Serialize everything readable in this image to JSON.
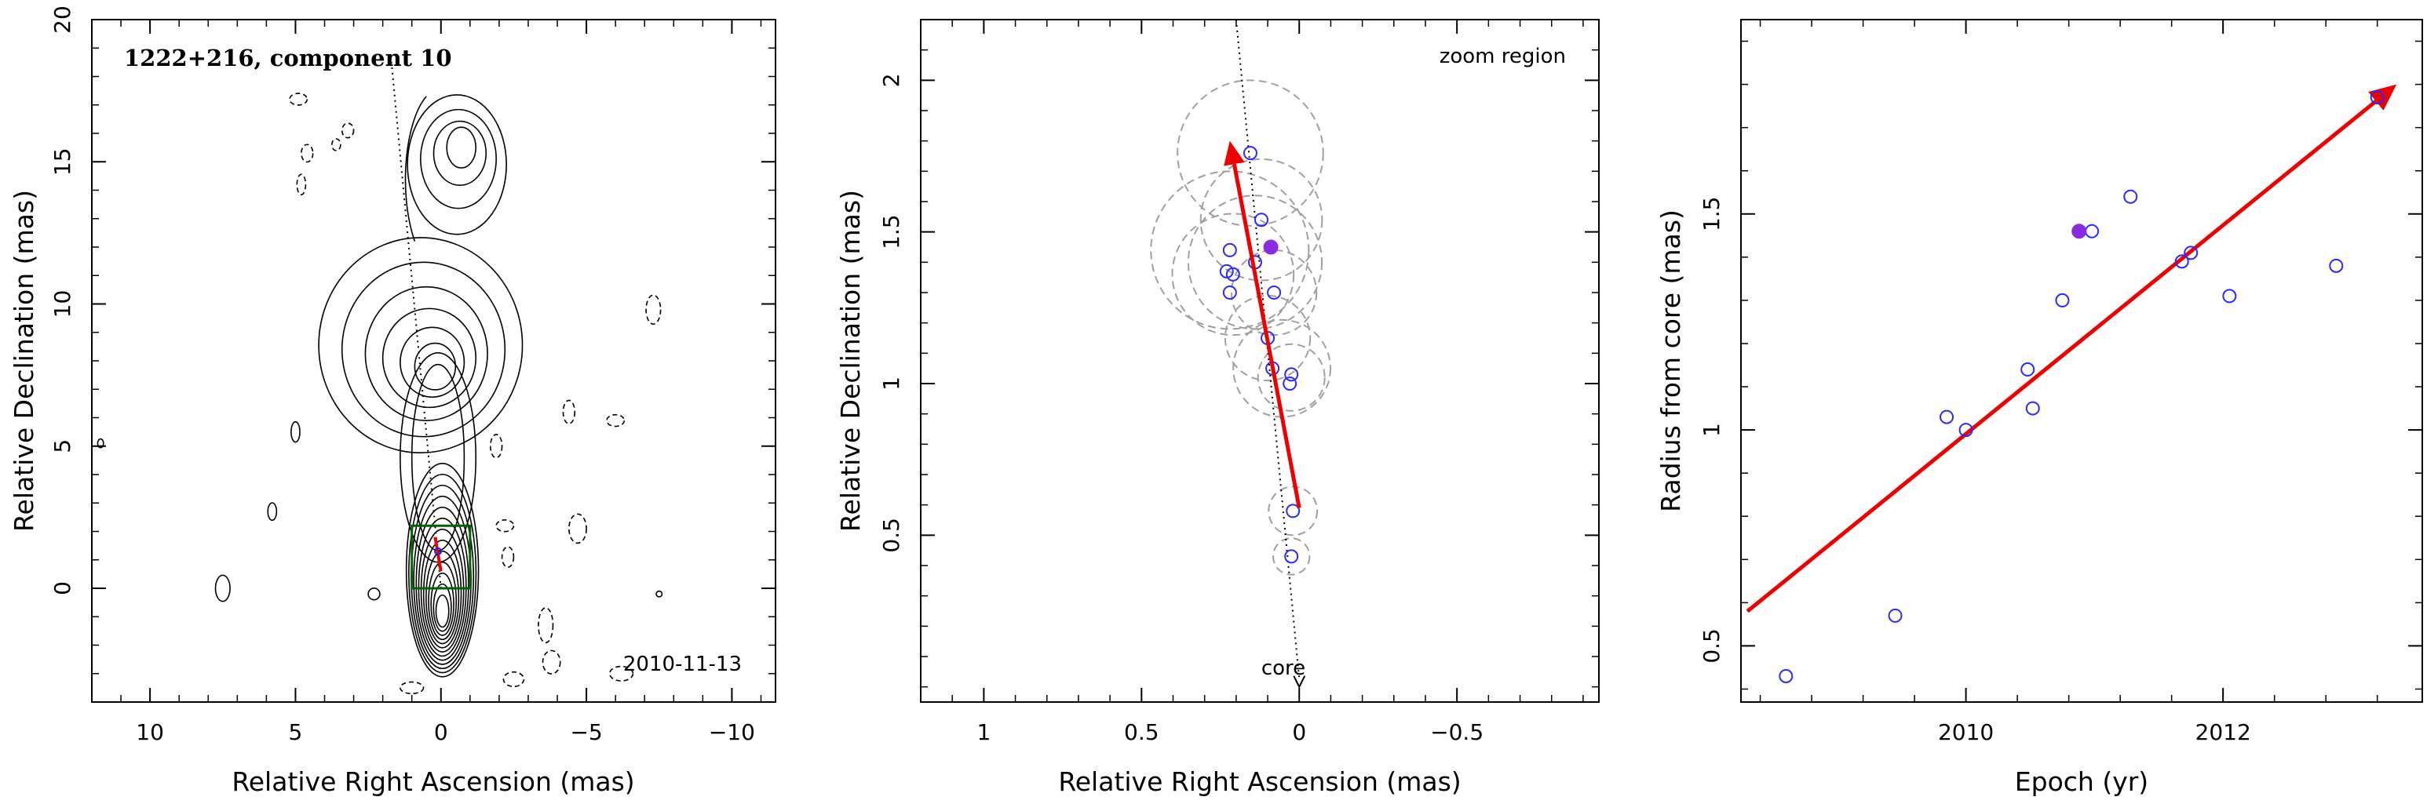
{
  "chart_data": [
    {
      "type": "contour",
      "title": "1222+216, component 10",
      "date": "2010-11-13",
      "xlabel": "Relative Right Ascension (mas)",
      "ylabel": "Relative Declination (mas)",
      "xlim": [
        12,
        -11.5
      ],
      "ylim": [
        -4,
        20
      ],
      "xticks": [
        10,
        5,
        0,
        -5,
        -10
      ],
      "yticks": [
        0,
        5,
        10,
        15,
        20
      ],
      "zoom_box": {
        "x": [
          1,
          -1
        ],
        "y": [
          0,
          2.2
        ],
        "color": "#006400"
      },
      "contour_peaks": [
        {
          "x": 0,
          "y": 0
        },
        {
          "x": 0.2,
          "y": 7.8
        },
        {
          "x": -0.7,
          "y": 15.5
        }
      ],
      "jet_axis_line": {
        "from": [
          0,
          0
        ],
        "to": [
          1.7,
          18.5
        ]
      }
    },
    {
      "type": "scatter",
      "label": "zoom region",
      "core_label": "core",
      "xlabel": "Relative Right Ascension (mas)",
      "ylabel": "Relative Declination (mas)",
      "xlim": [
        1.2,
        -0.95
      ],
      "ylim": [
        -0.05,
        2.2
      ],
      "xticks": [
        1,
        0.5,
        0,
        -0.5
      ],
      "yticks": [
        0.5,
        1,
        1.5,
        2
      ],
      "points": [
        {
          "x": 0.155,
          "y": 1.76
        },
        {
          "x": 0.12,
          "y": 1.54
        },
        {
          "x": 0.22,
          "y": 1.44
        },
        {
          "x": 0.14,
          "y": 1.4
        },
        {
          "x": 0.23,
          "y": 1.37
        },
        {
          "x": 0.21,
          "y": 1.36
        },
        {
          "x": 0.08,
          "y": 1.3
        },
        {
          "x": 0.22,
          "y": 1.3
        },
        {
          "x": 0.1,
          "y": 1.15
        },
        {
          "x": 0.085,
          "y": 1.05
        },
        {
          "x": 0.025,
          "y": 1.03
        },
        {
          "x": 0.03,
          "y": 1.0
        },
        {
          "x": 0.02,
          "y": 0.58
        },
        {
          "x": 0.025,
          "y": 0.43
        }
      ],
      "highlight_point": {
        "x": 0.09,
        "y": 1.45
      },
      "error_circles": [
        {
          "x": 0.155,
          "y": 1.76,
          "r": 0.24
        },
        {
          "x": 0.12,
          "y": 1.54,
          "r": 0.2
        },
        {
          "x": 0.22,
          "y": 1.44,
          "r": 0.26
        },
        {
          "x": 0.14,
          "y": 1.4,
          "r": 0.22
        },
        {
          "x": 0.21,
          "y": 1.36,
          "r": 0.2
        },
        {
          "x": 0.08,
          "y": 1.3,
          "r": 0.14
        },
        {
          "x": 0.1,
          "y": 1.15,
          "r": 0.14
        },
        {
          "x": 0.055,
          "y": 1.05,
          "r": 0.16
        },
        {
          "x": 0.025,
          "y": 1.02,
          "r": 0.11
        },
        {
          "x": 0.02,
          "y": 0.58,
          "r": 0.08
        },
        {
          "x": 0.025,
          "y": 0.43,
          "r": 0.06
        }
      ],
      "motion_arrow": {
        "from": [
          0,
          0.59
        ],
        "to": [
          0.22,
          1.8
        ],
        "color": "#ee0000"
      },
      "core_arrow": {
        "from": [
          0.2,
          2.2
        ],
        "to": [
          0,
          0
        ]
      }
    },
    {
      "type": "scatter",
      "xlabel": "Epoch (yr)",
      "ylabel": "Radius from core (mas)",
      "xlim": [
        2008.25,
        2013.55
      ],
      "ylim": [
        0.37,
        1.95
      ],
      "xticks": [
        2010,
        2012
      ],
      "yticks": [
        0.5,
        1,
        1.5
      ],
      "points": [
        {
          "x": 2008.6,
          "y": 0.43
        },
        {
          "x": 2009.45,
          "y": 0.57
        },
        {
          "x": 2009.85,
          "y": 1.03
        },
        {
          "x": 2010.0,
          "y": 1.0
        },
        {
          "x": 2010.48,
          "y": 1.14
        },
        {
          "x": 2010.52,
          "y": 1.05
        },
        {
          "x": 2010.75,
          "y": 1.3
        },
        {
          "x": 2010.98,
          "y": 1.46
        },
        {
          "x": 2011.28,
          "y": 1.54
        },
        {
          "x": 2011.68,
          "y": 1.39
        },
        {
          "x": 2011.75,
          "y": 1.41
        },
        {
          "x": 2012.05,
          "y": 1.31
        },
        {
          "x": 2012.88,
          "y": 1.38
        },
        {
          "x": 2013.2,
          "y": 1.77
        }
      ],
      "highlight_point": {
        "x": 2010.88,
        "y": 1.46
      },
      "fit_arrow": {
        "from": [
          2008.3,
          0.58
        ],
        "to": [
          2013.35,
          1.8
        ],
        "color": "#ee0000"
      }
    }
  ]
}
